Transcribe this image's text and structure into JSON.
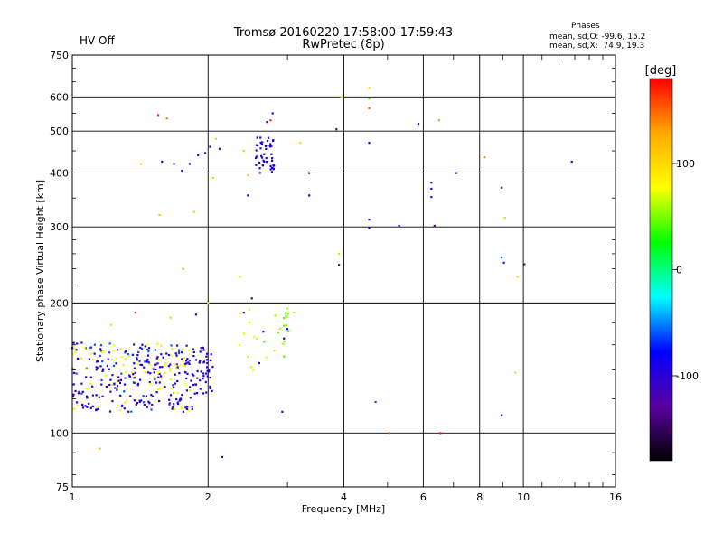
{
  "chart_data": {
    "type": "scatter",
    "title": "Tromsø 20160220 17:58:00-17:59:43",
    "subtitle": "RwPretec (8p)",
    "status": "HV Off",
    "status_color": "#cc0000",
    "xlabel": "Frequency [MHz]",
    "ylabel": "Stationary phase Virtual Height [km]",
    "xscale": "log",
    "yscale": "log",
    "xlim": [
      1,
      16
    ],
    "ylim": [
      75,
      750
    ],
    "xticks": [
      1,
      2,
      4,
      6,
      8,
      10,
      16
    ],
    "yticks": [
      75,
      100,
      200,
      300,
      400,
      500,
      600,
      750
    ],
    "grid": true,
    "info": {
      "heading": "Phases",
      "line1": "mean, sd,O: -99.6, 15.2",
      "line2": "mean, sd,X:  74.9, 19.3"
    },
    "colorbar": {
      "label": "[deg]",
      "range": [
        -180,
        180
      ],
      "ticks": [
        100,
        0,
        -100
      ],
      "colors": [
        "#ff0000",
        "#ffaa00",
        "#ffff00",
        "#00ff00",
        "#00ffff",
        "#0000ff",
        "#5a00a0",
        "#000000"
      ]
    },
    "clusters": [
      {
        "x": [
          1.0,
          1.85
        ],
        "y": [
          112,
          162
        ],
        "n": 330,
        "phases": [
          -105,
          -100,
          -95,
          -90,
          -110,
          80,
          70,
          -60
        ]
      },
      {
        "x": [
          1.85,
          2.05
        ],
        "y": [
          122,
          158
        ],
        "n": 50,
        "phases": [
          -100,
          -95,
          -105
        ]
      },
      {
        "x": [
          2.3,
          2.7
        ],
        "y": [
          140,
          195
        ],
        "n": 14,
        "phases": [
          90,
          70,
          40,
          -80
        ]
      },
      {
        "x": [
          2.8,
          3.05
        ],
        "y": [
          150,
          195
        ],
        "n": 18,
        "phases": [
          40,
          50,
          60,
          -90
        ]
      },
      {
        "x": [
          2.55,
          2.8
        ],
        "y": [
          400,
          490
        ],
        "n": 48,
        "phases": [
          -100,
          -95,
          -110,
          -90
        ]
      }
    ],
    "points": [
      {
        "x": 1.15,
        "y": 92,
        "phase": 120
      },
      {
        "x": 1.55,
        "y": 545,
        "phase": 160
      },
      {
        "x": 1.62,
        "y": 535,
        "phase": 140
      },
      {
        "x": 1.58,
        "y": 425,
        "phase": -70
      },
      {
        "x": 1.42,
        "y": 420,
        "phase": 100
      },
      {
        "x": 1.56,
        "y": 320,
        "phase": 110
      },
      {
        "x": 1.76,
        "y": 240,
        "phase": 130
      },
      {
        "x": 1.68,
        "y": 420,
        "phase": -100
      },
      {
        "x": 1.75,
        "y": 405,
        "phase": -110
      },
      {
        "x": 1.82,
        "y": 420,
        "phase": -100
      },
      {
        "x": 1.9,
        "y": 440,
        "phase": -100
      },
      {
        "x": 1.97,
        "y": 445,
        "phase": -105
      },
      {
        "x": 2.02,
        "y": 460,
        "phase": -100
      },
      {
        "x": 2.08,
        "y": 480,
        "phase": 100
      },
      {
        "x": 2.12,
        "y": 455,
        "phase": -110
      },
      {
        "x": 2.05,
        "y": 390,
        "phase": 110
      },
      {
        "x": 1.86,
        "y": 325,
        "phase": 110
      },
      {
        "x": 2.4,
        "y": 450,
        "phase": 110
      },
      {
        "x": 2.45,
        "y": 395,
        "phase": 110
      },
      {
        "x": 2.45,
        "y": 355,
        "phase": -90
      },
      {
        "x": 2.5,
        "y": 205,
        "phase": -80
      },
      {
        "x": 2.35,
        "y": 230,
        "phase": 100
      },
      {
        "x": 2.7,
        "y": 525,
        "phase": -120
      },
      {
        "x": 2.75,
        "y": 530,
        "phase": 170
      },
      {
        "x": 2.78,
        "y": 550,
        "phase": -100
      },
      {
        "x": 3.2,
        "y": 470,
        "phase": 100
      },
      {
        "x": 3.35,
        "y": 400,
        "phase": -130
      },
      {
        "x": 3.35,
        "y": 355,
        "phase": -80
      },
      {
        "x": 3.85,
        "y": 505,
        "phase": -110
      },
      {
        "x": 3.95,
        "y": 600,
        "phase": 100
      },
      {
        "x": 4.55,
        "y": 630,
        "phase": 100
      },
      {
        "x": 4.55,
        "y": 595,
        "phase": 40
      },
      {
        "x": 4.55,
        "y": 565,
        "phase": 150
      },
      {
        "x": 4.55,
        "y": 470,
        "phase": -80
      },
      {
        "x": 4.55,
        "y": 312,
        "phase": -80
      },
      {
        "x": 4.55,
        "y": 298,
        "phase": -90
      },
      {
        "x": 3.9,
        "y": 260,
        "phase": 100
      },
      {
        "x": 3.9,
        "y": 245,
        "phase": -150
      },
      {
        "x": 5.3,
        "y": 302,
        "phase": -100
      },
      {
        "x": 5.85,
        "y": 520,
        "phase": -130
      },
      {
        "x": 6.25,
        "y": 380,
        "phase": -110
      },
      {
        "x": 6.25,
        "y": 368,
        "phase": -100
      },
      {
        "x": 6.25,
        "y": 352,
        "phase": -110
      },
      {
        "x": 6.35,
        "y": 302,
        "phase": -120
      },
      {
        "x": 6.5,
        "y": 530,
        "phase": 130
      },
      {
        "x": 7.1,
        "y": 400,
        "phase": -70
      },
      {
        "x": 8.2,
        "y": 435,
        "phase": 140
      },
      {
        "x": 8.95,
        "y": 370,
        "phase": -110
      },
      {
        "x": 8.95,
        "y": 255,
        "phase": -60
      },
      {
        "x": 9.05,
        "y": 248,
        "phase": -70
      },
      {
        "x": 9.1,
        "y": 315,
        "phase": 110
      },
      {
        "x": 9.7,
        "y": 230,
        "phase": 110
      },
      {
        "x": 9.6,
        "y": 138,
        "phase": 100
      },
      {
        "x": 10.05,
        "y": 246,
        "phase": -120
      },
      {
        "x": 8.95,
        "y": 110,
        "phase": -120
      },
      {
        "x": 4.7,
        "y": 118,
        "phase": -60
      },
      {
        "x": 5.05,
        "y": 100,
        "phase": 150
      },
      {
        "x": 6.55,
        "y": 100,
        "phase": 170
      },
      {
        "x": 2.92,
        "y": 112,
        "phase": -120
      },
      {
        "x": 2.15,
        "y": 88,
        "phase": -120
      },
      {
        "x": 1.38,
        "y": 190,
        "phase": 170
      },
      {
        "x": 1.22,
        "y": 178,
        "phase": 60
      },
      {
        "x": 1.65,
        "y": 185,
        "phase": 110
      },
      {
        "x": 1.88,
        "y": 188,
        "phase": -80
      },
      {
        "x": 2.0,
        "y": 200,
        "phase": 100
      },
      {
        "x": 2.4,
        "y": 190,
        "phase": -120
      },
      {
        "x": 3.1,
        "y": 190,
        "phase": 60
      },
      {
        "x": 12.8,
        "y": 425,
        "phase": -110
      }
    ]
  }
}
